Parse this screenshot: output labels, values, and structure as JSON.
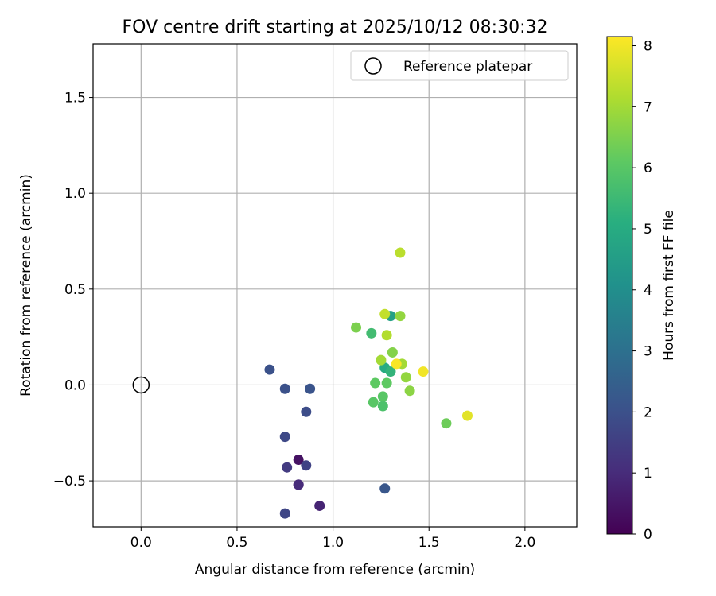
{
  "chart_data": {
    "type": "scatter",
    "title": "FOV centre drift starting at 2025/10/12 08:30:32",
    "xlabel": "Angular distance from reference (arcmin)",
    "ylabel": "Rotation from reference (arcmin)",
    "xlim": [
      -0.25,
      2.27
    ],
    "ylim": [
      -0.74,
      1.78
    ],
    "xticks": [
      0.0,
      0.5,
      1.0,
      1.5,
      2.0
    ],
    "xtick_labels": [
      "0.0",
      "0.5",
      "1.0",
      "1.5",
      "2.0"
    ],
    "yticks": [
      -0.5,
      0.0,
      0.5,
      1.0,
      1.5
    ],
    "ytick_labels": [
      "−0.5",
      "0.0",
      "0.5",
      "1.0",
      "1.5"
    ],
    "grid": true,
    "legend": {
      "placement": "top-right",
      "entries": [
        "Reference platepar"
      ]
    },
    "reference_point": {
      "x": 0.0,
      "y": 0.0
    },
    "colorbar": {
      "label": "Hours from first FF file",
      "range": [
        0,
        8.15
      ],
      "ticks": [
        0,
        1,
        2,
        3,
        4,
        5,
        6,
        7,
        8
      ],
      "tick_labels": [
        "0",
        "1",
        "2",
        "3",
        "4",
        "5",
        "6",
        "7",
        "8"
      ],
      "colormap": "viridis"
    },
    "points": [
      {
        "x": 0.82,
        "y": -0.52,
        "hours": 0.1
      },
      {
        "x": 0.82,
        "y": -0.39,
        "hours": 0.4
      },
      {
        "x": 0.93,
        "y": -0.63,
        "hours": 0.8
      },
      {
        "x": 0.82,
        "y": -0.52,
        "hours": 1.0
      },
      {
        "x": 0.76,
        "y": -0.43,
        "hours": 1.4
      },
      {
        "x": 0.86,
        "y": -0.42,
        "hours": 1.6
      },
      {
        "x": 0.75,
        "y": -0.67,
        "hours": 1.7
      },
      {
        "x": 0.75,
        "y": -0.27,
        "hours": 1.8
      },
      {
        "x": 0.86,
        "y": -0.14,
        "hours": 1.9
      },
      {
        "x": 0.67,
        "y": 0.08,
        "hours": 2.0
      },
      {
        "x": 0.75,
        "y": -0.02,
        "hours": 2.0
      },
      {
        "x": 0.88,
        "y": -0.02,
        "hours": 2.1
      },
      {
        "x": 1.27,
        "y": -0.54,
        "hours": 2.2
      },
      {
        "x": 1.3,
        "y": 0.36,
        "hours": 4.6
      },
      {
        "x": 1.27,
        "y": 0.09,
        "hours": 5.0
      },
      {
        "x": 1.3,
        "y": 0.07,
        "hours": 5.3
      },
      {
        "x": 1.2,
        "y": 0.27,
        "hours": 5.6
      },
      {
        "x": 1.26,
        "y": -0.11,
        "hours": 5.8
      },
      {
        "x": 1.21,
        "y": -0.09,
        "hours": 6.0
      },
      {
        "x": 1.26,
        "y": -0.06,
        "hours": 6.0
      },
      {
        "x": 1.22,
        "y": 0.01,
        "hours": 6.1
      },
      {
        "x": 1.28,
        "y": 0.01,
        "hours": 6.1
      },
      {
        "x": 1.59,
        "y": -0.2,
        "hours": 6.3
      },
      {
        "x": 1.12,
        "y": 0.3,
        "hours": 6.5
      },
      {
        "x": 1.31,
        "y": 0.17,
        "hours": 6.6
      },
      {
        "x": 1.4,
        "y": -0.03,
        "hours": 6.7
      },
      {
        "x": 1.38,
        "y": 0.04,
        "hours": 6.8
      },
      {
        "x": 1.35,
        "y": 0.36,
        "hours": 6.8
      },
      {
        "x": 1.25,
        "y": 0.13,
        "hours": 7.0
      },
      {
        "x": 1.36,
        "y": 0.11,
        "hours": 7.0
      },
      {
        "x": 1.28,
        "y": 0.26,
        "hours": 7.2
      },
      {
        "x": 1.35,
        "y": 0.69,
        "hours": 7.3
      },
      {
        "x": 1.27,
        "y": 0.37,
        "hours": 7.4
      },
      {
        "x": 1.7,
        "y": -0.16,
        "hours": 7.8
      },
      {
        "x": 1.47,
        "y": 0.07,
        "hours": 8.0
      },
      {
        "x": 1.33,
        "y": 0.11,
        "hours": 8.1
      }
    ]
  }
}
